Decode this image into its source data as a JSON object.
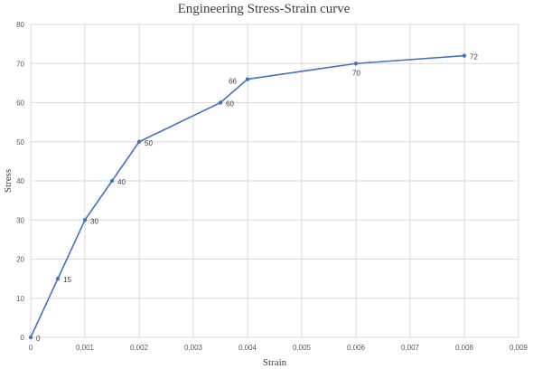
{
  "chart_data": {
    "type": "line",
    "title": "Engineering Stress-Strain curve",
    "xlabel": "Strain",
    "ylabel": "Stress",
    "xlim": [
      0,
      0.009
    ],
    "ylim": [
      0,
      80
    ],
    "x_ticks": [
      "0",
      "0.001",
      "0.002",
      "0.003",
      "0.004",
      "0.005",
      "0.006",
      "0.007",
      "0.008",
      "0.009"
    ],
    "y_ticks": [
      "0",
      "10",
      "20",
      "30",
      "40",
      "50",
      "60",
      "70",
      "80"
    ],
    "grid": true,
    "legend": "none",
    "series": [
      {
        "x": [
          0,
          0.0005,
          0.001,
          0.0015,
          0.002,
          0.0035,
          0.004,
          0.006,
          0.008
        ],
        "y": [
          0,
          15,
          30,
          40,
          50,
          60,
          66,
          70,
          72
        ],
        "labels": [
          "0",
          "15",
          "30",
          "40",
          "50",
          "60",
          "66",
          "70",
          "72"
        ],
        "color": "#4472c4"
      }
    ]
  }
}
